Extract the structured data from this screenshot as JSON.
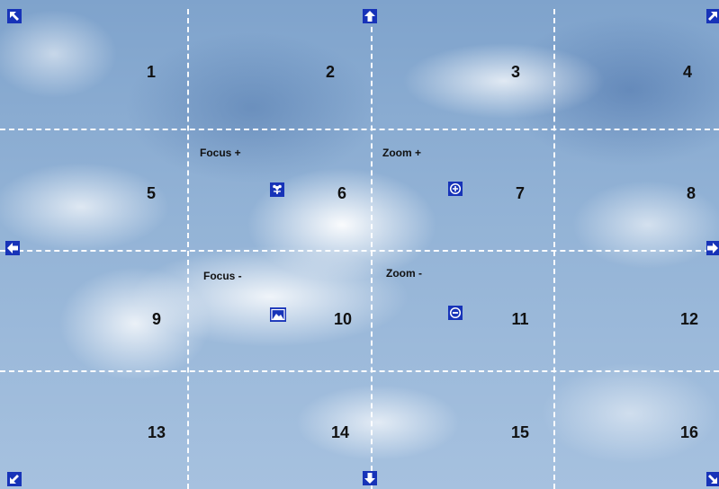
{
  "grid": {
    "cells": [
      "1",
      "2",
      "3",
      "4",
      "5",
      "6",
      "7",
      "8",
      "9",
      "10",
      "11",
      "12",
      "13",
      "14",
      "15",
      "16"
    ]
  },
  "controls": {
    "focus_plus": "Focus +",
    "focus_minus": "Focus -",
    "zoom_plus": "Zoom +",
    "zoom_minus": "Zoom -"
  },
  "icons": {
    "nav_color": "#1733b8",
    "arrows": [
      "arrow-up-left-icon",
      "arrow-up-icon",
      "arrow-up-right-icon",
      "arrow-left-icon",
      "arrow-right-icon",
      "arrow-down-left-icon",
      "arrow-down-icon",
      "arrow-down-right-icon"
    ],
    "focus_plus_icon": "flower-icon",
    "focus_minus_icon": "landscape-icon",
    "zoom_plus_icon": "zoom-in-icon",
    "zoom_minus_icon": "zoom-out-icon"
  }
}
